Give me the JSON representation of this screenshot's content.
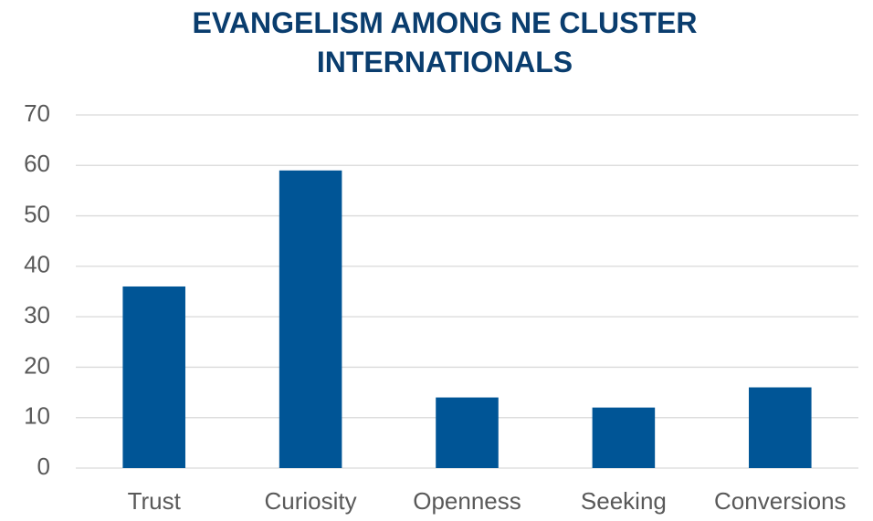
{
  "chart_data": {
    "type": "bar",
    "title": "EVANGELISM AMONG NE CLUSTER INTERNATIONALS",
    "categories": [
      "Trust",
      "Curiosity",
      "Openness",
      "Seeking",
      "Conversions"
    ],
    "values": [
      36,
      59,
      14,
      12,
      16
    ],
    "color": "#005596",
    "ylim": [
      0,
      70
    ],
    "yticks": [
      0,
      10,
      20,
      30,
      40,
      50,
      60,
      70
    ],
    "grid": true
  }
}
